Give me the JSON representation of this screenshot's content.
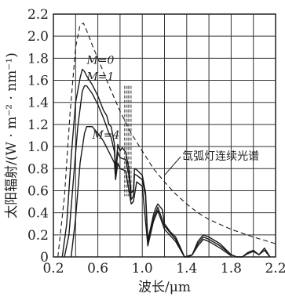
{
  "chart_data": {
    "type": "line",
    "title": "",
    "xlabel": "波长/μm",
    "ylabel": "太阳辐射/(W · m⁻² · nm⁻¹)",
    "xlim": [
      0.2,
      2.2
    ],
    "ylim": [
      0,
      2.2
    ],
    "x_ticks": [
      0.2,
      0.4,
      0.6,
      0.8,
      1.0,
      1.2,
      1.4,
      1.6,
      1.8,
      2.0,
      2.2
    ],
    "x_tick_labels": [
      "0.2",
      "0.6",
      "1.0",
      "1.4",
      "1.8",
      "2.2"
    ],
    "y_ticks": [
      0,
      0.2,
      0.4,
      0.6,
      0.8,
      1.0,
      1.2,
      1.4,
      1.6,
      1.8,
      2.0,
      2.2
    ],
    "y_tick_labels": [
      "0",
      "0.2",
      "0.4",
      "0.6",
      "0.8",
      "1.0",
      "1.2",
      "1.4",
      "1.6",
      "1.8",
      "2.0",
      "2.2"
    ],
    "grid": true,
    "series": [
      {
        "style": "dashed",
        "x": [
          0.24,
          0.3,
          0.35,
          0.4,
          0.44,
          0.47,
          0.5,
          0.55,
          0.6,
          0.7,
          0.8,
          0.9,
          1.0,
          1.1,
          1.2,
          1.3,
          1.4,
          1.5,
          1.6,
          1.8,
          2.0,
          2.2
        ],
        "y": [
          0.0,
          0.55,
          1.3,
          1.9,
          2.1,
          2.12,
          2.05,
          1.92,
          1.8,
          1.55,
          1.32,
          1.12,
          0.96,
          0.8,
          0.68,
          0.57,
          0.48,
          0.4,
          0.34,
          0.25,
          0.18,
          0.12
        ]
      },
      {
        "x": [
          0.28,
          0.32,
          0.36,
          0.4,
          0.44,
          0.46,
          0.48,
          0.5,
          0.55,
          0.6,
          0.65,
          0.68,
          0.7,
          0.72,
          0.75,
          0.76,
          0.78,
          0.8,
          0.82,
          0.85,
          0.88,
          0.9,
          0.92,
          0.93,
          0.95,
          1.0,
          1.03,
          1.05,
          1.1,
          1.12,
          1.14,
          1.18,
          1.2,
          1.25,
          1.3,
          1.35,
          1.38,
          1.42,
          1.45,
          1.5,
          1.55,
          1.6,
          1.7,
          1.8,
          1.85,
          1.9,
          1.95,
          2.0,
          2.05,
          2.1,
          2.15
        ],
        "y": [
          0.0,
          0.3,
          0.9,
          1.4,
          1.62,
          1.7,
          1.68,
          1.64,
          1.56,
          1.46,
          1.33,
          1.28,
          1.2,
          1.18,
          1.02,
          0.78,
          1.02,
          0.96,
          0.99,
          0.95,
          0.8,
          0.58,
          0.6,
          0.8,
          0.79,
          0.74,
          0.58,
          0.15,
          0.38,
          0.44,
          0.48,
          0.43,
          0.3,
          0.23,
          0.18,
          0.07,
          0.0,
          0.0,
          0.02,
          0.14,
          0.2,
          0.18,
          0.12,
          0.02,
          0.0,
          0.0,
          0.04,
          0.06,
          0.02,
          0.08,
          0.0
        ]
      },
      {
        "x": [
          0.3,
          0.34,
          0.38,
          0.42,
          0.46,
          0.48,
          0.5,
          0.55,
          0.6,
          0.65,
          0.7,
          0.72,
          0.75,
          0.76,
          0.78,
          0.8,
          0.85,
          0.88,
          0.9,
          0.92,
          0.93,
          0.95,
          1.0,
          1.03,
          1.05,
          1.1,
          1.14,
          1.2,
          1.3,
          1.35,
          1.38,
          1.42,
          1.45,
          1.5,
          1.55,
          1.6,
          1.7,
          1.8,
          1.85,
          1.9,
          1.95,
          2.0,
          2.05,
          2.1,
          2.15
        ],
        "y": [
          0.0,
          0.2,
          0.7,
          1.18,
          1.5,
          1.55,
          1.55,
          1.48,
          1.38,
          1.26,
          1.12,
          1.08,
          0.95,
          0.75,
          0.95,
          0.9,
          0.88,
          0.74,
          0.52,
          0.55,
          0.75,
          0.74,
          0.7,
          0.55,
          0.12,
          0.35,
          0.45,
          0.28,
          0.16,
          0.06,
          0.0,
          0.0,
          0.02,
          0.12,
          0.18,
          0.16,
          0.1,
          0.02,
          0.0,
          0.0,
          0.03,
          0.05,
          0.02,
          0.06,
          0.0
        ]
      },
      {
        "x": [
          0.36,
          0.4,
          0.44,
          0.48,
          0.5,
          0.55,
          0.6,
          0.65,
          0.7,
          0.75,
          0.76,
          0.78,
          0.8,
          0.85,
          0.9,
          0.92,
          0.95,
          1.0,
          1.05,
          1.1,
          1.14,
          1.2,
          1.3,
          1.38,
          1.45,
          1.5,
          1.55,
          1.6,
          1.7,
          1.8
        ],
        "y": [
          0.0,
          0.35,
          0.85,
          1.12,
          1.18,
          1.18,
          1.12,
          1.05,
          0.95,
          0.85,
          0.7,
          0.85,
          0.8,
          0.78,
          0.48,
          0.5,
          0.68,
          0.64,
          0.1,
          0.32,
          0.42,
          0.25,
          0.14,
          0.0,
          0.02,
          0.1,
          0.16,
          0.14,
          0.08,
          0.01
        ]
      }
    ],
    "annotations": [
      {
        "text": "M=0",
        "x": 0.5,
        "y": 1.75
      },
      {
        "text": "M=1",
        "x": 0.5,
        "y": 1.6
      },
      {
        "text": "M=4",
        "x": 0.55,
        "y": 1.07
      },
      {
        "text": "氙弧灯连续光谱",
        "x": 1.36,
        "y": 0.88
      }
    ]
  }
}
